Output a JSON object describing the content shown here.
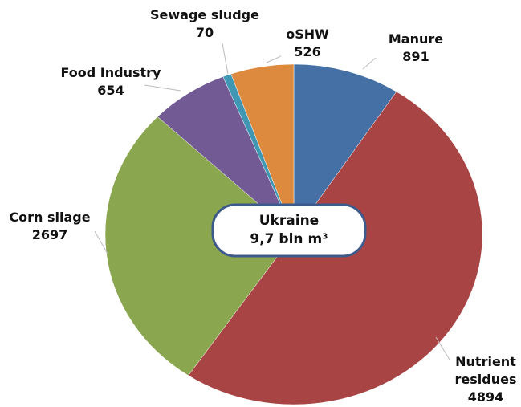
{
  "chart_data": {
    "type": "pie",
    "categories": [
      "Manure",
      "Nutrient residues",
      "Corn silage",
      "Food Industry",
      "Sewage sludge",
      "oSHW"
    ],
    "values": [
      891,
      4894,
      2697,
      654,
      70,
      526
    ],
    "colors": [
      "#4470a6",
      "#a84444",
      "#8aa64e",
      "#725a95",
      "#3f97b4",
      "#de8a3e"
    ],
    "center_label": [
      "Ukraine",
      "9,7 bln m³"
    ]
  }
}
